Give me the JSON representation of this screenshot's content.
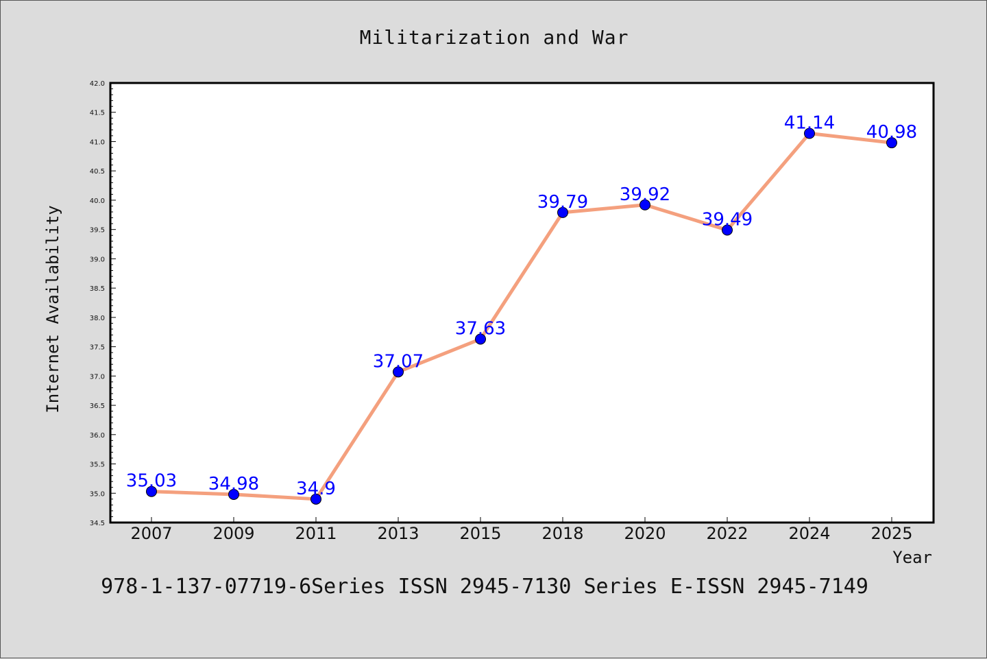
{
  "chart_data": {
    "type": "line",
    "title": "Militarization and War",
    "xlabel": "Year",
    "ylabel": "Internet Availability",
    "categories": [
      "2007",
      "2009",
      "2011",
      "2013",
      "2015",
      "2018",
      "2020",
      "2022",
      "2024",
      "2025"
    ],
    "series": [
      {
        "values": [
          35.03,
          34.98,
          34.9,
          37.07,
          37.63,
          39.79,
          39.92,
          39.49,
          41.14,
          40.98
        ],
        "labels": [
          "35.03",
          "34.98",
          "34.9",
          "37.07",
          "37.63",
          "39.79",
          "39.92",
          "39.49",
          "41.14",
          "40.98"
        ],
        "line_color": "#f4a07e",
        "marker_color": "#0000ff"
      }
    ],
    "ylim": [
      34.5,
      42.0
    ],
    "yticks": [
      "34.5",
      "35.0",
      "35.5",
      "36.0",
      "36.5",
      "37.0",
      "37.5",
      "38.0",
      "38.5",
      "39.0",
      "39.5",
      "40.0",
      "40.5",
      "41.0",
      "41.5",
      "42.0"
    ],
    "grid": false,
    "label_color": "#0000ff"
  },
  "footer": {
    "text": "978-1-137-07719-6Series ISSN 2945-7130 Series E-ISSN 2945-7149"
  }
}
